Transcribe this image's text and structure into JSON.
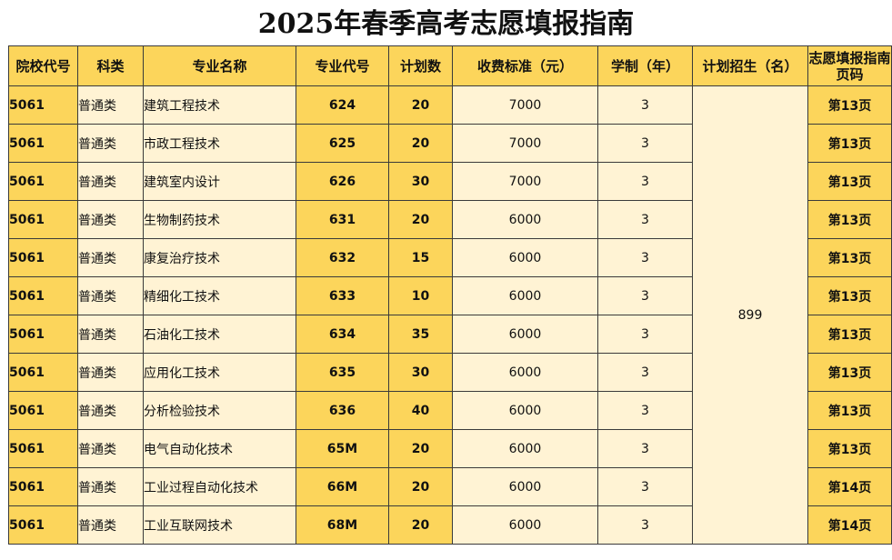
{
  "title": "2025年春季高考志愿填报指南",
  "colors": {
    "header_bg": "#fcd55b",
    "yellow_col_bg": "#fcd55b",
    "cream_col_bg": "#fff3d4",
    "border": "#3a3a3a"
  },
  "table": {
    "headers": [
      "院校代号",
      "科类",
      "专业名称",
      "专业代号",
      "计划数",
      "收费标准（元）",
      "学制（年）",
      "计划招生（名）",
      "志愿填报指南页码"
    ],
    "plan_total": "899",
    "rows": [
      {
        "school_code": "5061",
        "category": "普通类",
        "major_name": "建筑工程技术",
        "major_code": "624",
        "plan": "20",
        "fee": "7000",
        "years": "3",
        "page": "第13页"
      },
      {
        "school_code": "5061",
        "category": "普通类",
        "major_name": "市政工程技术",
        "major_code": "625",
        "plan": "20",
        "fee": "7000",
        "years": "3",
        "page": "第13页"
      },
      {
        "school_code": "5061",
        "category": "普通类",
        "major_name": "建筑室内设计",
        "major_code": "626",
        "plan": "30",
        "fee": "7000",
        "years": "3",
        "page": "第13页"
      },
      {
        "school_code": "5061",
        "category": "普通类",
        "major_name": "生物制药技术",
        "major_code": "631",
        "plan": "20",
        "fee": "6000",
        "years": "3",
        "page": "第13页"
      },
      {
        "school_code": "5061",
        "category": "普通类",
        "major_name": "康复治疗技术",
        "major_code": "632",
        "plan": "15",
        "fee": "6000",
        "years": "3",
        "page": "第13页"
      },
      {
        "school_code": "5061",
        "category": "普通类",
        "major_name": "精细化工技术",
        "major_code": "633",
        "plan": "10",
        "fee": "6000",
        "years": "3",
        "page": "第13页"
      },
      {
        "school_code": "5061",
        "category": "普通类",
        "major_name": "石油化工技术",
        "major_code": "634",
        "plan": "35",
        "fee": "6000",
        "years": "3",
        "page": "第13页"
      },
      {
        "school_code": "5061",
        "category": "普通类",
        "major_name": "应用化工技术",
        "major_code": "635",
        "plan": "30",
        "fee": "6000",
        "years": "3",
        "page": "第13页"
      },
      {
        "school_code": "5061",
        "category": "普通类",
        "major_name": "分析检验技术",
        "major_code": "636",
        "plan": "40",
        "fee": "6000",
        "years": "3",
        "page": "第13页"
      },
      {
        "school_code": "5061",
        "category": "普通类",
        "major_name": "电气自动化技术",
        "major_code": "65M",
        "plan": "20",
        "fee": "6000",
        "years": "3",
        "page": "第13页"
      },
      {
        "school_code": "5061",
        "category": "普通类",
        "major_name": "工业过程自动化技术",
        "major_code": "66M",
        "plan": "20",
        "fee": "6000",
        "years": "3",
        "page": "第14页"
      },
      {
        "school_code": "5061",
        "category": "普通类",
        "major_name": "工业互联网技术",
        "major_code": "68M",
        "plan": "20",
        "fee": "6000",
        "years": "3",
        "page": "第14页"
      }
    ]
  }
}
